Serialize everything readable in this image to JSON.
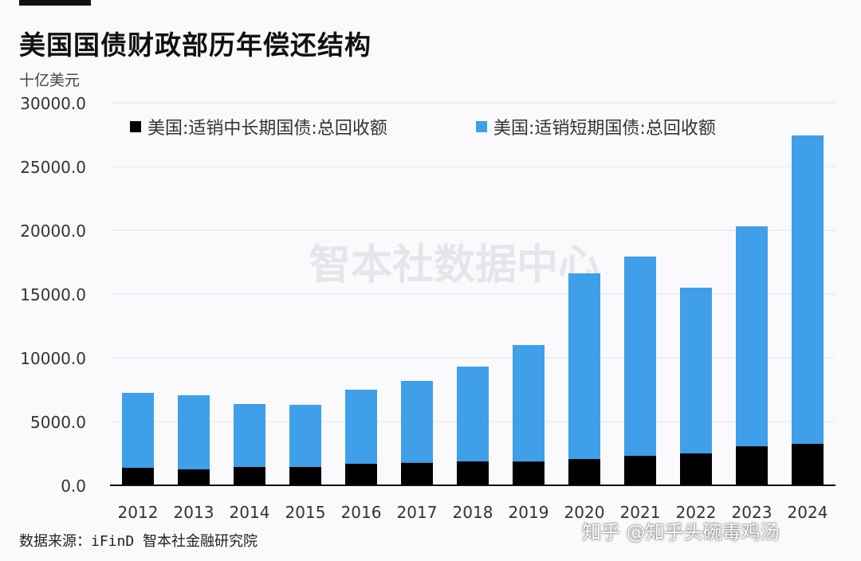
{
  "title": "美国国债财政部历年偿还结构",
  "unit": "十亿美元",
  "source": "数据来源：iFinD 智本社金融研究院",
  "watermark": "智本社数据中心",
  "credit": "知乎 @知乎头碗毒鸡汤",
  "chart_data": {
    "type": "bar",
    "stacked": true,
    "title": "美国国债财政部历年偿还结构",
    "ylabel": "十亿美元",
    "ylim": [
      0,
      30000
    ],
    "yticks": [
      "0.0",
      "5000.0",
      "10000.0",
      "15000.0",
      "20000.0",
      "25000.0",
      "30000.0"
    ],
    "grid": true,
    "legend": "top",
    "categories": [
      "2012",
      "2013",
      "2014",
      "2015",
      "2016",
      "2017",
      "2018",
      "2019",
      "2020",
      "2021",
      "2022",
      "2023",
      "2024"
    ],
    "series": [
      {
        "name": "美国:适销中长期国债:总回收额",
        "color": "#000000",
        "values": [
          1375,
          1250,
          1440,
          1440,
          1690,
          1770,
          1880,
          1870,
          2060,
          2310,
          2500,
          3060,
          3250
        ]
      },
      {
        "name": "美国:适销短期国债:总回收额",
        "color": "#3f9fe9",
        "values": [
          5875,
          5810,
          4935,
          4870,
          5810,
          6420,
          7430,
          9130,
          14565,
          15630,
          13000,
          17250,
          24190
        ]
      }
    ]
  }
}
